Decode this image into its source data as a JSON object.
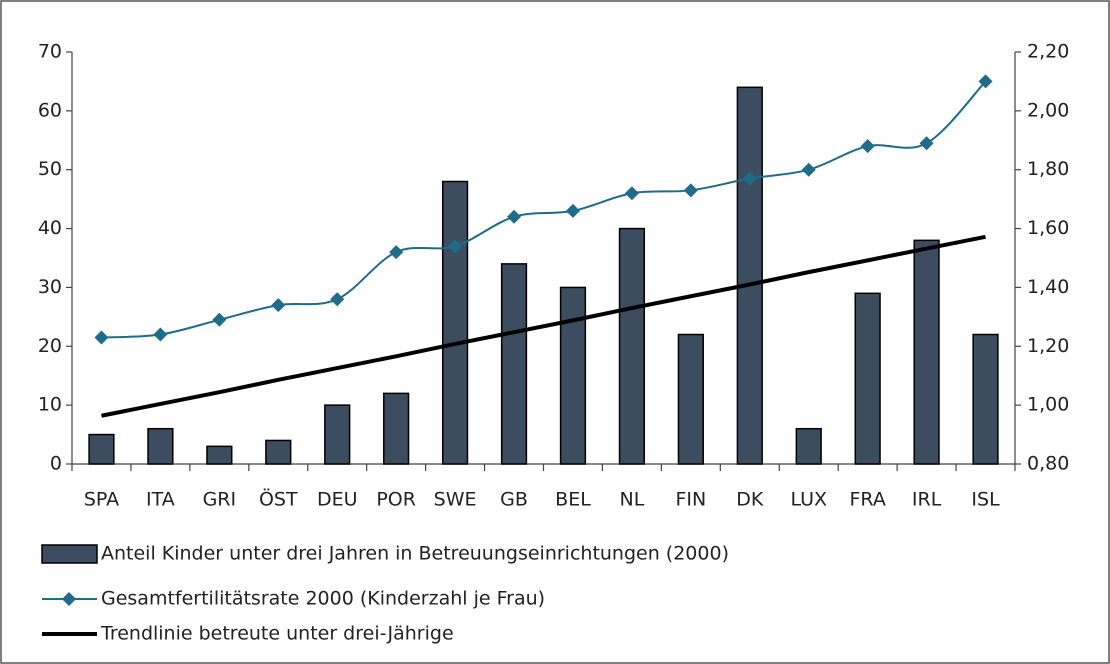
{
  "chart_data": {
    "type": "bar",
    "categories": [
      "SPA",
      "ITA",
      "GRI",
      "ÖST",
      "DEU",
      "POR",
      "SWE",
      "GB",
      "BEL",
      "NL",
      "FIN",
      "DK",
      "LUX",
      "FRA",
      "IRL",
      "ISL"
    ],
    "series": [
      {
        "name": "Anteil Kinder unter drei Jahren in Betreuungseinrichtungen (2000)",
        "type": "bar",
        "color": "#3b4d5f",
        "values": [
          5,
          6,
          3,
          4,
          10,
          12,
          48,
          34,
          30,
          40,
          22,
          64,
          6,
          29,
          38,
          22
        ]
      },
      {
        "name": "Gesamtfertilitätsrate 2000 (Kinderzahl je Frau)",
        "type": "line",
        "axis": "y2",
        "color": "#1f6b8a",
        "values": [
          1.23,
          1.24,
          1.29,
          1.34,
          1.36,
          1.52,
          1.54,
          1.64,
          1.66,
          1.72,
          1.73,
          1.77,
          1.8,
          1.88,
          1.89,
          2.1
        ]
      },
      {
        "name": "Trendlinie betreute unter drei-Jährige",
        "type": "trend",
        "color": "#000000",
        "values": [
          8.2,
          10.2,
          12.2,
          14.3,
          16.3,
          18.3,
          20.4,
          22.4,
          24.4,
          26.5,
          28.5,
          30.5,
          32.6,
          34.6,
          36.6,
          38.6
        ]
      }
    ],
    "ylim": [
      0,
      70
    ],
    "yticks": [
      0,
      10,
      20,
      30,
      40,
      50,
      60,
      70
    ],
    "y2lim": [
      0.8,
      2.2
    ],
    "y2ticks": [
      {
        "value": 0.8,
        "label": "0,80"
      },
      {
        "value": 1.0,
        "label": "1,00"
      },
      {
        "value": 1.2,
        "label": "1,20"
      },
      {
        "value": 1.4,
        "label": "1,40"
      },
      {
        "value": 1.6,
        "label": "1,60"
      },
      {
        "value": 1.8,
        "label": "1,80"
      },
      {
        "value": 2.0,
        "label": "2,00"
      },
      {
        "value": 2.2,
        "label": "2,20"
      }
    ],
    "grid": false
  }
}
